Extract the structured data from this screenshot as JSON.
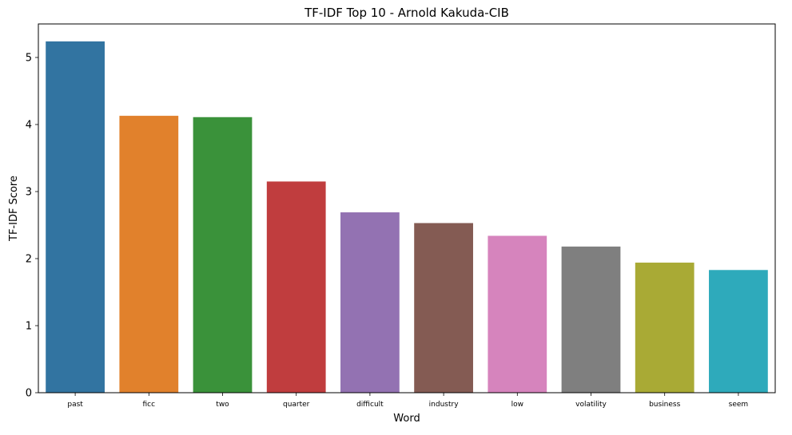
{
  "chart_data": {
    "type": "bar",
    "title": "TF-IDF Top 10 - Arnold Kakuda-CIB",
    "xlabel": "Word",
    "ylabel": "TF-IDF Score",
    "categories": [
      "past",
      "ficc",
      "two",
      "quarter",
      "difficult",
      "industry",
      "low",
      "volatility",
      "business",
      "seem"
    ],
    "values": [
      5.24,
      4.13,
      4.11,
      3.15,
      2.69,
      2.53,
      2.34,
      2.18,
      1.94,
      1.83
    ],
    "colors": [
      "#3274a1",
      "#e1812c",
      "#3a923a",
      "#c03d3e",
      "#9372b2",
      "#845b53",
      "#d684bd",
      "#7f7f7f",
      "#a9aa35",
      "#2eaabb"
    ],
    "yticks": [
      0,
      1,
      2,
      3,
      4,
      5
    ],
    "ylim": [
      0,
      5.5
    ],
    "grid": false,
    "legend": false
  }
}
